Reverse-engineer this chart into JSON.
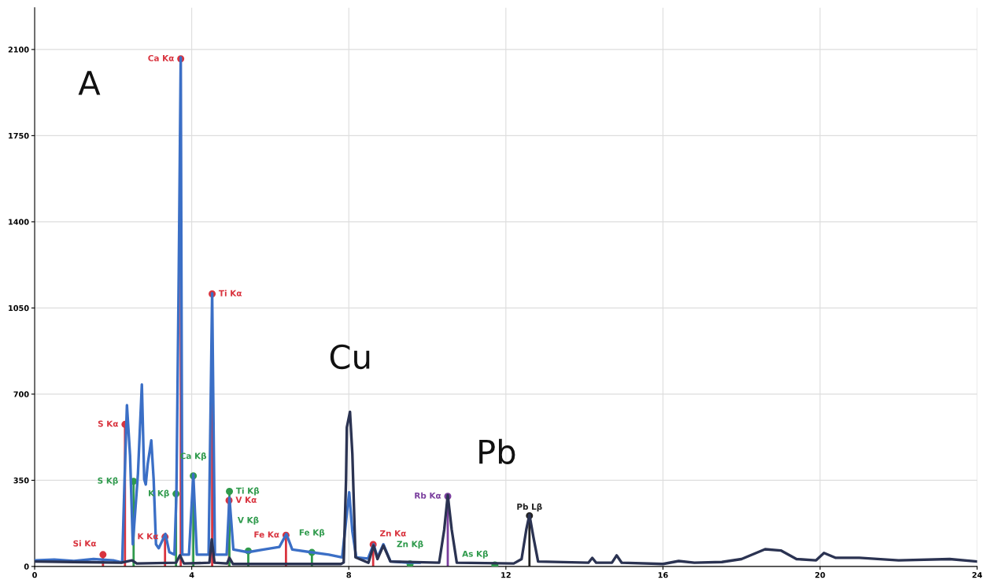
{
  "chart_data": {
    "type": "line",
    "xlim": [
      0,
      24
    ],
    "xticks": [
      0,
      4,
      8,
      12,
      16,
      20,
      24
    ],
    "ylim": [
      0,
      2270
    ],
    "yticks": [
      0,
      350,
      700,
      1050,
      1400,
      1750,
      2100
    ],
    "grid": true,
    "series": [
      {
        "type": "line",
        "color": "#3b6fc6",
        "x": [
          0,
          0.5,
          1.0,
          1.5,
          2.0,
          2.23,
          2.29,
          2.35,
          2.43,
          2.5,
          2.63,
          2.73,
          2.79,
          2.83,
          2.88,
          2.97,
          3.03,
          3.09,
          3.16,
          3.33,
          3.43,
          3.56,
          3.61,
          3.67,
          3.72,
          3.76,
          3.93,
          4.04,
          4.13,
          4.43,
          4.52,
          4.59,
          4.89,
          4.96,
          5.06,
          5.43,
          5.83,
          6.23,
          6.41,
          6.56,
          7.03,
          7.49,
          7.83,
          7.93,
          8.01,
          8.09,
          8.19,
          8.49,
          8.63,
          8.73,
          8.88,
          9.06,
          9.5,
          9.8
        ],
        "values": [
          25,
          28,
          22,
          30,
          25,
          16,
          354,
          655,
          449,
          90,
          375,
          739,
          354,
          333,
          417,
          512,
          354,
          90,
          74,
          132,
          58,
          48,
          296,
          1200,
          2068,
          48,
          48,
          375,
          48,
          48,
          1110,
          48,
          48,
          280,
          69,
          58,
          69,
          79,
          132,
          69,
          58,
          48,
          37,
          185,
          301,
          143,
          37,
          32,
          90,
          37,
          90,
          21,
          15,
          15
        ]
      },
      {
        "type": "line",
        "color": "#2b3352",
        "x": [
          0,
          1.0,
          2.2,
          2.48,
          2.6,
          3.6,
          3.7,
          3.8,
          4.45,
          4.51,
          4.58,
          4.9,
          4.96,
          5.05,
          7.8,
          7.87,
          7.93,
          7.95,
          8.03,
          8.09,
          8.17,
          8.5,
          8.63,
          8.73,
          8.88,
          9.06,
          10.3,
          10.43,
          10.52,
          10.62,
          10.75,
          12.2,
          12.4,
          12.52,
          12.6,
          12.7,
          12.82,
          14.1,
          14.2,
          14.3,
          14.7,
          14.82,
          14.95,
          16.0,
          16.4,
          16.8,
          17.5,
          18.0,
          18.6,
          19.0,
          19.4,
          19.9,
          20.1,
          20.4,
          21.0,
          22.0,
          23.3,
          24.0
        ],
        "values": [
          20,
          18,
          15,
          25,
          12,
          15,
          45,
          12,
          15,
          110,
          15,
          12,
          35,
          10,
          10,
          16,
          354,
          565,
          628,
          459,
          37,
          15,
          85,
          30,
          85,
          20,
          15,
          150,
          290,
          150,
          15,
          12,
          30,
          150,
          210,
          120,
          20,
          15,
          35,
          15,
          15,
          45,
          15,
          10,
          22,
          15,
          18,
          30,
          70,
          65,
          30,
          25,
          55,
          35,
          35,
          25,
          30,
          20
        ]
      },
      {
        "type": "lollipop",
        "color": "#d9343f",
        "marker": "circle",
        "x": [
          1.74,
          2.3,
          3.32,
          3.72,
          4.52,
          4.95,
          6.4,
          8.62
        ],
        "values": [
          48,
          577,
          120,
          2062,
          1107,
          268,
          127,
          89
        ],
        "value_labels": [
          "Si Kα",
          "S Kα",
          "K Kα",
          "Ca Kα",
          "Ti Kα",
          "V Kα",
          "Fe Kα",
          "Zn Kα"
        ]
      },
      {
        "type": "lollipop",
        "color": "#2f9a4c",
        "marker": "circle",
        "x": [
          2.52,
          3.6,
          4.04,
          4.96,
          5.44,
          7.06,
          9.56,
          11.72
        ],
        "values": [
          346,
          295,
          368,
          305,
          63,
          57,
          10,
          6
        ],
        "value_labels": [
          "S Kβ",
          "K Kβ",
          "Ca Kβ",
          "Ti Kβ",
          "V Kβ",
          "Fe Kβ",
          "Zn Kβ",
          "As Kβ"
        ]
      },
      {
        "type": "lollipop",
        "color": "#7b3f9e",
        "marker": "circle",
        "x": [
          10.52
        ],
        "values": [
          285
        ],
        "value_labels": [
          "Rb Kα"
        ]
      },
      {
        "type": "lollipop",
        "color": "#222222",
        "marker": "circle",
        "x": [
          12.6
        ],
        "values": [
          206
        ],
        "value_labels": [
          "Pb Lβ"
        ]
      }
    ],
    "annotations": [
      "A",
      "Cu",
      "Pb"
    ]
  }
}
